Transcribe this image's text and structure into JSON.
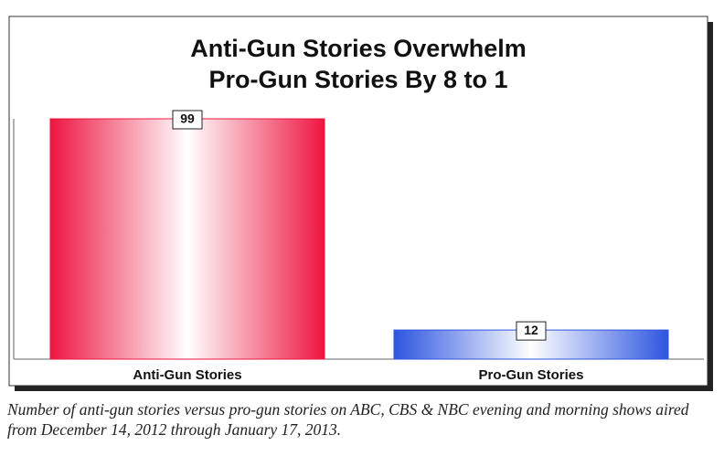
{
  "chart_data": {
    "type": "bar",
    "title": [
      "Anti-Gun Stories Overwhelm",
      "Pro-Gun Stories By 8 to 1"
    ],
    "categories": [
      "Anti-Gun Stories",
      "Pro-Gun Stories"
    ],
    "values": [
      99,
      12
    ],
    "colors": [
      "#ee1540",
      "#2d55e0"
    ],
    "caption": "Number of anti-gun stories versus pro-gun stories on ABC, CBS & NBC evening and morning shows aired from December 14, 2012 through January 17, 2013."
  }
}
